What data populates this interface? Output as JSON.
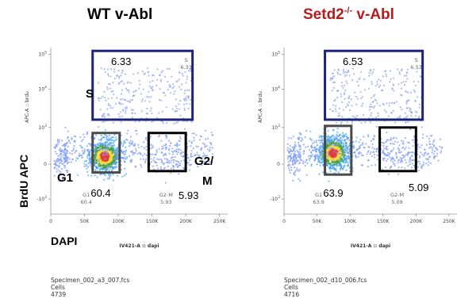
{
  "figure": {
    "y_axis_label": "BrdU APC",
    "x_axis_label": "DAPI"
  },
  "chart_data": [
    {
      "type": "scatter",
      "title": "WT v-Abl",
      "title_color": "#000000",
      "xlabel": "IV421-A :: dapi",
      "ylabel": "APC-A :: brdu",
      "x_ticks": [
        "0",
        "50K",
        "100K",
        "150K",
        "200K",
        "250K"
      ],
      "y_ticks": [
        "10^5",
        "10^4",
        "10^3",
        "0",
        "-10^3"
      ],
      "xlim": [
        0,
        262144
      ],
      "y_scale": "biexponential",
      "specimen": {
        "file": "Specimen_002_a3_007.fcs",
        "population": "Cells",
        "count": "4739"
      },
      "gates": [
        {
          "name": "S",
          "percent": "6.33",
          "small_label": "S",
          "small_value": "6.33",
          "color": "#1a237e",
          "x_range": [
            62000,
            210000
          ],
          "y_range": [
            1600,
            110000
          ]
        },
        {
          "name": "G1",
          "percent": "60.4",
          "small_label": "G1",
          "small_value": "60.4",
          "color": "#4a4a4a",
          "x_range": [
            62000,
            102000
          ],
          "y_range": [
            -240,
            850
          ]
        },
        {
          "name": "G2/M",
          "percent": "5.93",
          "small_label": "G2-M",
          "small_value": "5.93",
          "color": "#000000",
          "x_range": [
            145000,
            200000
          ],
          "y_range": [
            -200,
            850
          ]
        }
      ]
    },
    {
      "type": "scatter",
      "title": "Setd2-/- v-Abl",
      "title_color": "#b71c1c",
      "xlabel": "IV421-A :: dapi",
      "ylabel": "APC-A :: brdu",
      "x_ticks": [
        "0",
        "50K",
        "100K",
        "150K",
        "200K",
        "250K"
      ],
      "y_ticks": [
        "10^5",
        "10^4",
        "10^3",
        "0",
        "-10^3"
      ],
      "xlim": [
        0,
        262144
      ],
      "y_scale": "biexponential",
      "specimen": {
        "file": "Specimen_002_d10_006.fcs",
        "population": "Cells",
        "count": "4716"
      },
      "gates": [
        {
          "name": "S",
          "percent": "6.53",
          "small_label": "S",
          "small_value": "6.53",
          "color": "#1a237e",
          "x_range": [
            62000,
            210000
          ],
          "y_range": [
            1600,
            110000
          ]
        },
        {
          "name": "G1",
          "percent": "63.9",
          "small_label": "G1",
          "small_value": "63.9",
          "color": "#4a4a4a",
          "x_range": [
            62000,
            102000
          ],
          "y_range": [
            -300,
            1100
          ]
        },
        {
          "name": "G2/M",
          "percent": "5.09",
          "small_label": "G2-M",
          "small_value": "5.09",
          "color": "#000000",
          "x_range": [
            145000,
            200000
          ],
          "y_range": [
            -200,
            1000
          ]
        }
      ]
    }
  ]
}
